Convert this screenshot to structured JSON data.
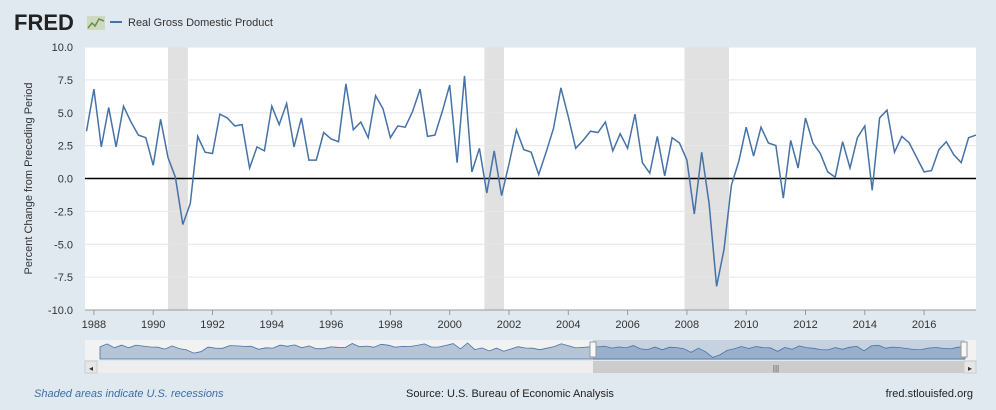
{
  "header": {
    "logo_text": "FRED",
    "legend_label": "Real Gross Domestic Product"
  },
  "footer": {
    "recession_note": "Shaded areas indicate U.S. recessions",
    "source": "Source: U.S. Bureau of Economic Analysis",
    "site": "fred.stlouisfed.org"
  },
  "colors": {
    "series": "#4572a7",
    "recession": "#e1e1e1",
    "background": "#e1e9f0",
    "zero_line": "#000000"
  },
  "chart_data": {
    "type": "line",
    "title": "",
    "xlabel": "",
    "ylabel": "Percent Change from Preceding Period",
    "ylim": [
      -10.0,
      10.0
    ],
    "xlim": [
      1987.7,
      2017.75
    ],
    "yticks": [
      10.0,
      7.5,
      5.0,
      2.5,
      0.0,
      -2.5,
      -5.0,
      -7.5,
      -10.0
    ],
    "ytick_labels": [
      "10.0",
      "7.5",
      "5.0",
      "2.5",
      "0.0",
      "-2.5",
      "-5.0",
      "-7.5",
      "-10.0"
    ],
    "xticks": [
      1988,
      1990,
      1992,
      1994,
      1996,
      1998,
      2000,
      2002,
      2004,
      2006,
      2008,
      2010,
      2012,
      2014,
      2016
    ],
    "grid": true,
    "legend": "top-left",
    "recessions": [
      [
        1990.5,
        1991.17
      ],
      [
        2001.17,
        2001.83
      ],
      [
        2007.92,
        2009.42
      ]
    ],
    "series": [
      {
        "name": "Real Gross Domestic Product",
        "start": 1987.75,
        "step": 0.25,
        "values": [
          3.6,
          6.8,
          2.4,
          5.4,
          2.4,
          5.5,
          4.3,
          3.3,
          3.1,
          1.0,
          4.5,
          1.6,
          0.1,
          -3.5,
          -1.9,
          3.2,
          2.0,
          1.9,
          4.9,
          4.6,
          4.0,
          4.1,
          0.8,
          2.4,
          2.1,
          5.5,
          4.1,
          5.7,
          2.4,
          4.6,
          1.4,
          1.4,
          3.5,
          3.0,
          2.8,
          7.2,
          3.7,
          4.3,
          3.1,
          6.3,
          5.3,
          3.1,
          4.0,
          3.9,
          5.1,
          6.8,
          3.2,
          3.3,
          5.1,
          7.1,
          1.2,
          7.8,
          0.5,
          2.3,
          -1.1,
          2.1,
          -1.3,
          1.1,
          3.7,
          2.2,
          2.0,
          0.3,
          2.0,
          3.8,
          6.9,
          4.7,
          2.3,
          2.9,
          3.6,
          3.5,
          4.3,
          2.1,
          3.4,
          2.3,
          4.9,
          1.2,
          0.4,
          3.2,
          0.2,
          3.1,
          2.7,
          1.4,
          -2.7,
          2.0,
          -1.9,
          -8.2,
          -5.4,
          -0.5,
          1.3,
          3.9,
          1.7,
          3.9,
          2.7,
          2.5,
          -1.5,
          2.9,
          0.8,
          4.6,
          2.7,
          1.9,
          0.5,
          0.1,
          2.8,
          0.8,
          3.1,
          4.0,
          -0.9,
          4.6,
          5.2,
          2.0,
          3.2,
          2.7,
          1.6,
          0.5,
          0.6,
          2.2,
          2.8,
          1.8,
          1.2,
          3.1,
          3.3
        ]
      }
    ]
  }
}
